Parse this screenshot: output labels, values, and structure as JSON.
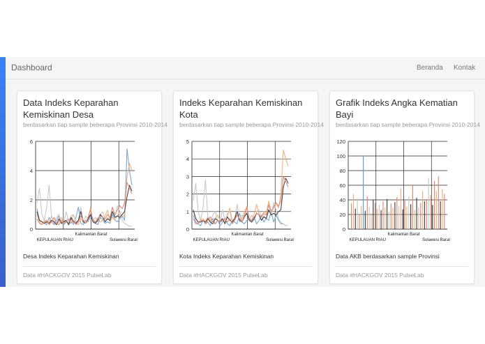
{
  "navbar": {
    "brand": "Dashboard",
    "links": [
      {
        "label": "Beranda"
      },
      {
        "label": "Kontak"
      }
    ]
  },
  "colors": {
    "accent": "#3b82f6",
    "series": [
      "#7aa6d6",
      "#f2b27a",
      "#c8c8c8",
      "#444444",
      "#e08a7a"
    ]
  },
  "cards": [
    {
      "title": "Data Indeks Keparahan Kemiskinan Desa",
      "subtitle": "berdasarkan tiap sample beberapa Provinsi 2010-2014",
      "caption": "Desa Indeks Keparahan Kemiskinan",
      "footer": "Data #HACKGOV 2015 PulseLab"
    },
    {
      "title": "Indeks Keparahan Kemiskinan Kota",
      "subtitle": "berdasarkan tiap sample beberapa Provinsi 2010-2014",
      "caption": "Kota Indeks Keparahan Kemiskinan",
      "footer": "Data #HACKGOV 2015 PulseLab"
    },
    {
      "title": "Grafik Indeks Angka Kematian Bayi",
      "subtitle": "berdasarkan tiap sample beberapa Provinsi 2010-2014",
      "caption": "Data AKB berdasarkan sample Provinsi",
      "footer": "Data #HACKGOV 2015 PulseLab"
    }
  ],
  "chart_data": [
    {
      "type": "line",
      "ylim": [
        0,
        6
      ],
      "yticks": [
        0,
        2,
        4,
        6
      ],
      "x_labels": [
        "Kalimantan Barat",
        "KEPULAUAN RIAU",
        "Sulawesi Barat"
      ],
      "series": [
        {
          "values": [
            1.4,
            0.6,
            0.5,
            0.4,
            0.3,
            0.8,
            0.5,
            0.3,
            0.6,
            0.9,
            0.4,
            0.3,
            0.5,
            0.4,
            0.7,
            0.3,
            0.8,
            1.5,
            0.4,
            0.3,
            0.6,
            0.5,
            0.9,
            0.7,
            0.4,
            0.3,
            0.8,
            0.6,
            0.4,
            0.5,
            0.4,
            1.0,
            0.6,
            0.5,
            0.7,
            0.9,
            0.6,
            5.5,
            4.0,
            3.0
          ]
        },
        {
          "values": [
            1.0,
            0.5,
            0.3,
            0.6,
            0.4,
            0.5,
            0.9,
            0.4,
            0.3,
            0.5,
            0.8,
            0.4,
            0.6,
            0.3,
            0.5,
            1.0,
            0.4,
            0.3,
            0.7,
            0.5,
            0.4,
            0.6,
            1.5,
            0.5,
            0.4,
            0.8,
            0.5,
            0.6,
            0.9,
            1.3,
            0.5,
            0.8,
            0.6,
            0.9,
            1.2,
            0.8,
            1.0,
            3.5,
            4.5,
            4.0
          ]
        },
        {
          "values": [
            1.8,
            2.8,
            1.0,
            0.6,
            1.5,
            3.0,
            0.8,
            0.5,
            0.8,
            1.0,
            0.5,
            0.4,
            1.2,
            0.5,
            0.9,
            1.0,
            0.5,
            0.6,
            1.5,
            0.4,
            0.9,
            0.7,
            1.0,
            0.6,
            0.8,
            0.5,
            1.0,
            1.2,
            0.5,
            0.8,
            0.6,
            1.5,
            0.8,
            1.6,
            1.2,
            0.6,
            0.4,
            0.3,
            0.2,
            0.2
          ]
        },
        {
          "values": [
            1.2,
            0.6,
            0.5,
            0.4,
            0.5,
            0.4,
            0.6,
            0.5,
            0.3,
            0.7,
            0.4,
            0.5,
            0.6,
            0.3,
            0.8,
            0.5,
            0.4,
            0.6,
            1.2,
            0.5,
            0.4,
            0.7,
            1.0,
            0.5,
            0.4,
            0.6,
            1.0,
            0.8,
            0.5,
            0.7,
            0.6,
            1.2,
            0.8,
            0.9,
            0.8,
            1.0,
            1.2,
            2.2,
            3.0,
            2.6
          ]
        },
        {
          "values": [
            0.7,
            0.4,
            0.3,
            0.5,
            0.6,
            0.3,
            0.5,
            0.8,
            0.4,
            0.3,
            0.6,
            0.4,
            0.5,
            0.7,
            0.4,
            0.6,
            0.3,
            0.5,
            0.9,
            0.6,
            0.4,
            0.8,
            1.3,
            0.6,
            0.5,
            0.7,
            0.9,
            0.8,
            0.7,
            1.0,
            0.8,
            1.5,
            1.0,
            1.3,
            1.6,
            1.4,
            1.8,
            3.2,
            2.8,
            2.4
          ]
        }
      ]
    },
    {
      "type": "line",
      "ylim": [
        0,
        5
      ],
      "yticks": [
        0,
        1,
        2,
        3,
        4,
        5
      ],
      "x_labels": [
        "Kalimantan Barat",
        "KEPULAUAN RIAU",
        "Sulawesi Barat"
      ],
      "series": [
        {
          "values": [
            0.8,
            0.4,
            0.3,
            0.2,
            0.5,
            0.3,
            0.4,
            0.2,
            0.6,
            0.3,
            0.5,
            0.2,
            0.4,
            0.6,
            0.3,
            0.2,
            0.5,
            0.4,
            0.3,
            0.9,
            0.4,
            0.3,
            0.5,
            0.6,
            0.4,
            0.7,
            0.3,
            0.5,
            0.8,
            0.4,
            0.6,
            0.5,
            1.0,
            0.4,
            0.8,
            0.5,
            0.3,
            0.3,
            0.2,
            0.2
          ]
        },
        {
          "values": [
            1.0,
            0.6,
            0.4,
            0.5,
            0.6,
            0.4,
            0.7,
            0.5,
            0.4,
            0.6,
            0.8,
            0.5,
            0.6,
            0.4,
            0.7,
            1.2,
            0.5,
            0.6,
            0.8,
            0.5,
            0.6,
            1.0,
            1.3,
            0.6,
            0.5,
            0.9,
            1.4,
            0.8,
            0.7,
            1.0,
            0.9,
            1.6,
            1.0,
            1.3,
            1.5,
            1.2,
            2.0,
            4.5,
            4.0,
            3.6
          ]
        },
        {
          "values": [
            1.6,
            2.6,
            1.0,
            0.5,
            1.2,
            2.8,
            0.7,
            0.4,
            0.8,
            1.0,
            0.5,
            0.4,
            1.1,
            0.5,
            0.9,
            1.0,
            0.4,
            0.6,
            1.4,
            0.4,
            0.8,
            0.7,
            1.0,
            0.5,
            0.8,
            0.5,
            1.0,
            1.1,
            0.5,
            0.8,
            0.6,
            1.4,
            0.8,
            1.5,
            1.1,
            0.6,
            0.4,
            0.3,
            0.2,
            0.2
          ]
        },
        {
          "values": [
            1.1,
            0.6,
            0.4,
            0.4,
            0.5,
            0.4,
            0.6,
            0.4,
            0.3,
            0.6,
            0.5,
            0.4,
            0.6,
            0.3,
            0.7,
            0.5,
            0.4,
            0.6,
            1.0,
            0.5,
            0.4,
            0.7,
            0.9,
            0.5,
            0.4,
            0.6,
            0.9,
            0.8,
            0.5,
            0.7,
            0.6,
            1.1,
            0.8,
            0.9,
            0.8,
            1.0,
            1.1,
            2.4,
            2.9,
            2.6
          ]
        },
        {
          "values": [
            0.6,
            0.3,
            0.3,
            0.5,
            0.5,
            0.3,
            0.5,
            0.7,
            0.4,
            0.3,
            0.5,
            0.4,
            0.5,
            0.6,
            0.4,
            0.6,
            0.3,
            0.5,
            0.8,
            0.6,
            0.4,
            0.8,
            1.2,
            0.6,
            0.5,
            0.7,
            0.9,
            0.8,
            0.7,
            0.9,
            0.8,
            1.4,
            1.0,
            1.2,
            1.5,
            1.3,
            1.6,
            3.0,
            2.7,
            2.4
          ]
        }
      ]
    },
    {
      "type": "bar",
      "ylim": [
        0,
        120
      ],
      "yticks": [
        0,
        20,
        40,
        60,
        80,
        100,
        120
      ],
      "x_labels": [
        "Kalimantan Barat",
        "KEPULAUAN RIAU",
        "Sulawesi Barat"
      ],
      "values": [
        35,
        48,
        28,
        42,
        20,
        32,
        100,
        25,
        45,
        30,
        22,
        40,
        36,
        28,
        33,
        26,
        38,
        30,
        41,
        24,
        35,
        29,
        37,
        44,
        32,
        56,
        27,
        39,
        31,
        45,
        34,
        61,
        26,
        43,
        30,
        36,
        52,
        38,
        41,
        70,
        47,
        33,
        66,
        52,
        72,
        38,
        55,
        48
      ],
      "bar_colors": [
        "#e08a7a",
        "#f2b27a",
        "#444444",
        "#c8c8c8",
        "#e08a7a",
        "#f2b27a",
        "#5fa3c8",
        "#444444",
        "#e08a7a",
        "#c8c8c8",
        "#f2b27a",
        "#444444",
        "#e08a7a",
        "#f2b27a",
        "#c8c8c8",
        "#444444",
        "#e08a7a",
        "#f2b27a",
        "#444444",
        "#c8c8c8",
        "#e08a7a",
        "#f2b27a",
        "#444444",
        "#e08a7a",
        "#c8c8c8",
        "#f2b27a",
        "#444444",
        "#e08a7a",
        "#f2b27a",
        "#c8c8c8",
        "#444444",
        "#e08a7a",
        "#f2b27a",
        "#444444",
        "#c8c8c8",
        "#e08a7a",
        "#f2b27a",
        "#444444",
        "#e08a7a",
        "#c8c8c8",
        "#f2b27a",
        "#444444",
        "#e08a7a",
        "#f2b27a",
        "#e08a7a",
        "#444444",
        "#f2b27a",
        "#e08a7a"
      ]
    }
  ]
}
